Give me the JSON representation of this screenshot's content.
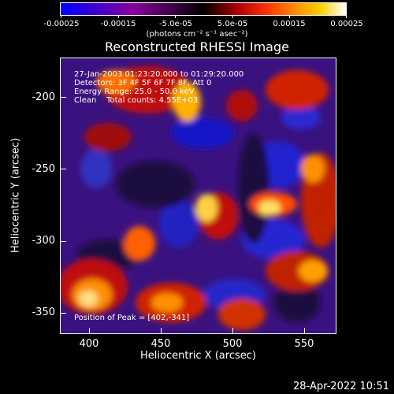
{
  "colorbar": {
    "ticks": [
      "-0.00025",
      "-0.00015",
      "-5.0e-05",
      "5.0e-05",
      "0.00015",
      "0.00025"
    ],
    "units": "(photons cm⁻² s⁻¹ asec⁻²)"
  },
  "plot": {
    "title": "Reconstructed RHESSI Image",
    "xlabel": "Heliocentric X (arcsec)",
    "ylabel": "Heliocentric Y (arcsec)",
    "xticks": [
      "400",
      "450",
      "500",
      "550"
    ],
    "yticks": [
      "-200",
      "-250",
      "-300",
      "-350"
    ],
    "annotations": {
      "time_range": "27-Jan-2003 01:23:20.000 to 01:29:20.000",
      "detectors": "Detectors: 3F 4F 5F 6F 7F 8F, Att 0",
      "energy_range": "Energy Range: 25.0 - 50.0 keV",
      "clean": "Clean    Total counts: 4.55E+03",
      "peak": "Position of Peak = [402,-341]"
    }
  },
  "footer": {
    "date": "28-Apr-2022 10:51"
  },
  "chart_data": {
    "type": "heatmap",
    "title": "Reconstructed RHESSI Image",
    "xlabel": "Heliocentric X (arcsec)",
    "ylabel": "Heliocentric Y (arcsec)",
    "xlim": [
      380,
      572
    ],
    "ylim": [
      -368,
      -175
    ],
    "colorbar_range": [
      -0.00025,
      0.00025
    ],
    "peak": [
      402,
      -341
    ]
  },
  "colors": {
    "background": "#000000",
    "text": "#ffffff"
  }
}
